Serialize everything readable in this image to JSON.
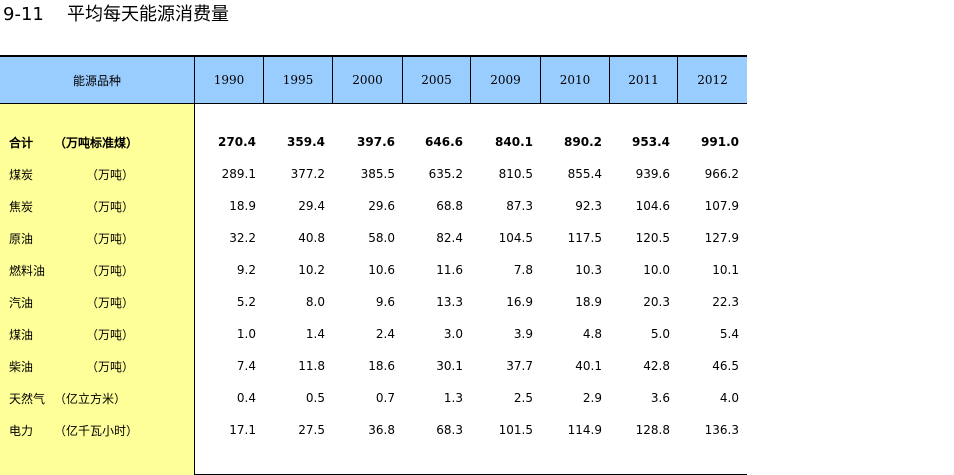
{
  "title": {
    "number": "9-11",
    "text": "平均每天能源消费量"
  },
  "table": {
    "header_label": "能源品种",
    "years": [
      "1990",
      "1995",
      "2000",
      "2005",
      "2009",
      "2010",
      "2011",
      "2012"
    ],
    "rows": [
      {
        "name": "合计",
        "unit": "（万吨标准煤）",
        "values": [
          "270.4",
          "359.4",
          "397.6",
          "646.6",
          "840.1",
          "890.2",
          "953.4",
          "991.0"
        ]
      },
      {
        "name": "煤炭",
        "unit": "（万吨）",
        "values": [
          "289.1",
          "377.2",
          "385.5",
          "635.2",
          "810.5",
          "855.4",
          "939.6",
          "966.2"
        ]
      },
      {
        "name": "焦炭",
        "unit": "（万吨）",
        "values": [
          "18.9",
          "29.4",
          "29.6",
          "68.8",
          "87.3",
          "92.3",
          "104.6",
          "107.9"
        ]
      },
      {
        "name": "原油",
        "unit": "（万吨）",
        "values": [
          "32.2",
          "40.8",
          "58.0",
          "82.4",
          "104.5",
          "117.5",
          "120.5",
          "127.9"
        ]
      },
      {
        "name": "燃料油",
        "unit": "（万吨）",
        "values": [
          "9.2",
          "10.2",
          "10.6",
          "11.6",
          "7.8",
          "10.3",
          "10.0",
          "10.1"
        ]
      },
      {
        "name": "汽油",
        "unit": "（万吨）",
        "values": [
          "5.2",
          "8.0",
          "9.6",
          "13.3",
          "16.9",
          "18.9",
          "20.3",
          "22.3"
        ]
      },
      {
        "name": "煤油",
        "unit": "（万吨）",
        "values": [
          "1.0",
          "1.4",
          "2.4",
          "3.0",
          "3.9",
          "4.8",
          "5.0",
          "5.4"
        ]
      },
      {
        "name": "柴油",
        "unit": "（万吨）",
        "values": [
          "7.4",
          "11.8",
          "18.6",
          "30.1",
          "37.7",
          "40.1",
          "42.8",
          "46.5"
        ]
      },
      {
        "name": "天然气",
        "unit": "（亿立方米）",
        "values": [
          "0.4",
          "0.5",
          "0.7",
          "1.3",
          "2.5",
          "2.9",
          "3.6",
          "4.0"
        ]
      },
      {
        "name": "电力",
        "unit": "（亿千瓦小时）",
        "values": [
          "17.1",
          "27.5",
          "36.8",
          "68.3",
          "101.5",
          "114.9",
          "128.8",
          "136.3"
        ]
      }
    ]
  },
  "colors": {
    "header_bg": "#99ccff",
    "label_col_bg": "#ffff99"
  }
}
